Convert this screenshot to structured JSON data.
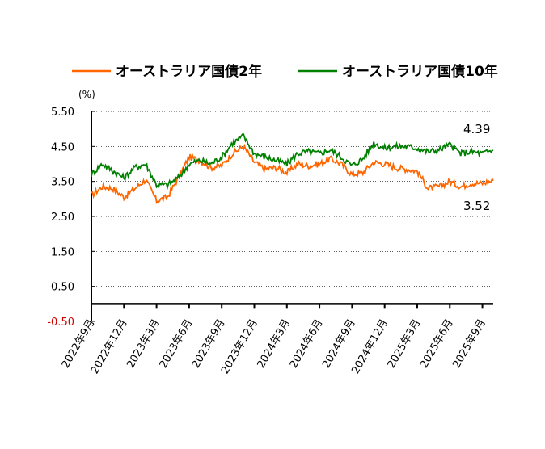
{
  "chart_data": {
    "type": "line",
    "unit_label": "(%)",
    "y_ticks": [
      "5.50",
      "4.50",
      "3.50",
      "2.50",
      "1.50",
      "0.50",
      "-0.50"
    ],
    "y_tick_values": [
      5.5,
      4.5,
      3.5,
      2.5,
      1.5,
      0.5,
      -0.5
    ],
    "ylim": [
      -0.5,
      5.5
    ],
    "x_ticks": [
      "2022年9月",
      "2022年12月",
      "2023年3月",
      "2023年6月",
      "2023年9月",
      "2023年12月",
      "2024年3月",
      "2024年6月",
      "2024年9月",
      "2024年12月",
      "2025年3月",
      "2025年6月",
      "2025年9月"
    ],
    "xlim": [
      "2022-09",
      "2025-10"
    ],
    "grid": true,
    "legend_position": "top",
    "x_months": [
      "2022-09",
      "2022-10",
      "2022-11",
      "2022-12",
      "2023-01",
      "2023-02",
      "2023-03",
      "2023-04",
      "2023-05",
      "2023-06",
      "2023-07",
      "2023-08",
      "2023-09",
      "2023-10",
      "2023-11",
      "2023-12",
      "2024-01",
      "2024-02",
      "2024-03",
      "2024-04",
      "2024-05",
      "2024-06",
      "2024-07",
      "2024-08",
      "2024-09",
      "2024-10",
      "2024-11",
      "2024-12",
      "2025-01",
      "2025-02",
      "2025-03",
      "2025-04",
      "2025-05",
      "2025-06",
      "2025-07",
      "2025-08",
      "2025-09",
      "2025-10"
    ],
    "series": [
      {
        "name": "オーストラリア国債2年",
        "color": "#ff6600",
        "values": [
          3.1,
          3.35,
          3.3,
          3.05,
          3.3,
          3.55,
          2.95,
          3.05,
          3.6,
          4.2,
          4.1,
          3.9,
          3.95,
          4.3,
          4.5,
          4.05,
          3.85,
          3.9,
          3.75,
          4.0,
          3.95,
          4.0,
          4.15,
          4.0,
          3.7,
          3.75,
          4.05,
          4.0,
          3.9,
          3.85,
          3.8,
          3.3,
          3.35,
          3.5,
          3.35,
          3.45,
          3.45,
          3.52
        ],
        "end_label": "3.52"
      },
      {
        "name": "オーストラリア国債10年",
        "color": "#008000",
        "values": [
          3.7,
          4.0,
          3.8,
          3.6,
          3.9,
          4.0,
          3.4,
          3.4,
          3.6,
          4.0,
          4.1,
          4.0,
          4.2,
          4.6,
          4.8,
          4.3,
          4.2,
          4.1,
          4.0,
          4.3,
          4.35,
          4.3,
          4.4,
          4.2,
          3.95,
          4.15,
          4.6,
          4.45,
          4.5,
          4.5,
          4.45,
          4.35,
          4.4,
          4.55,
          4.3,
          4.35,
          4.3,
          4.39
        ],
        "end_label": "4.39"
      }
    ]
  }
}
